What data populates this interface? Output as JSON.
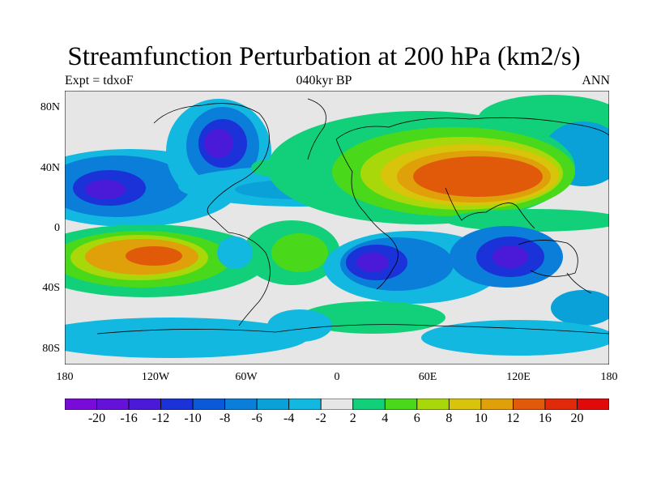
{
  "title": "Streamfunction Perturbation at 200 hPa (km2/s)",
  "subtitle_left": "Expt = tdxoF",
  "subtitle_center": "040kyr BP",
  "subtitle_right": "ANN",
  "lat_labels": [
    "80N",
    "40N",
    "0",
    "40S",
    "80S"
  ],
  "lon_labels": [
    "180",
    "120W",
    "60W",
    "0",
    "60E",
    "120E",
    "180"
  ],
  "colorbar": {
    "labels": [
      "-20",
      "-16",
      "-12",
      "-10",
      "-8",
      "-6",
      "-4",
      "-2",
      "2",
      "4",
      "6",
      "8",
      "10",
      "12",
      "16",
      "20"
    ],
    "colors": [
      "#7a0ad8",
      "#6412d8",
      "#4a1ad8",
      "#1a32d8",
      "#0a5ad8",
      "#0a7ed8",
      "#0aa0d8",
      "#12b8e0",
      "#e6e6e6",
      "#12d07a",
      "#4ad81a",
      "#a8d80a",
      "#d8c40a",
      "#e0a00a",
      "#e05a0a",
      "#e02a0a",
      "#e00a0a"
    ]
  },
  "map_background": "#e6e6e6",
  "coastline_color": "#000000"
}
